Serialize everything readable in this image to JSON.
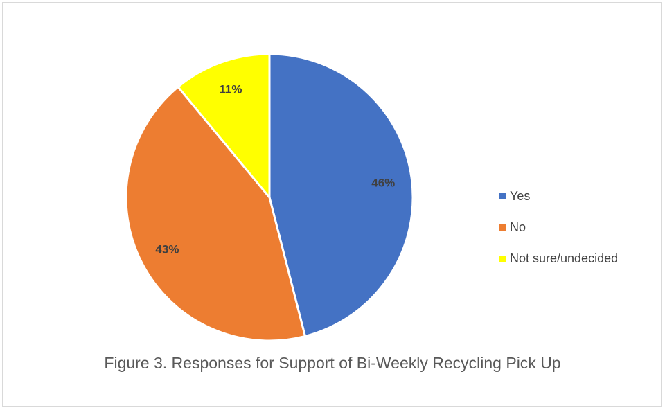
{
  "chart_data": {
    "type": "pie",
    "categories": [
      "Yes",
      "No",
      "Not sure/undecided"
    ],
    "values": [
      46,
      43,
      11
    ],
    "value_labels": [
      "46%",
      "43%",
      "11%"
    ],
    "colors": [
      "#4472C4",
      "#ED7D31",
      "#FFFF00"
    ],
    "legend_position": "right",
    "start_angle_deg": 0,
    "direction": "clockwise"
  },
  "caption": "Figure 3. Responses for Support of Bi-Weekly Recycling Pick Up"
}
